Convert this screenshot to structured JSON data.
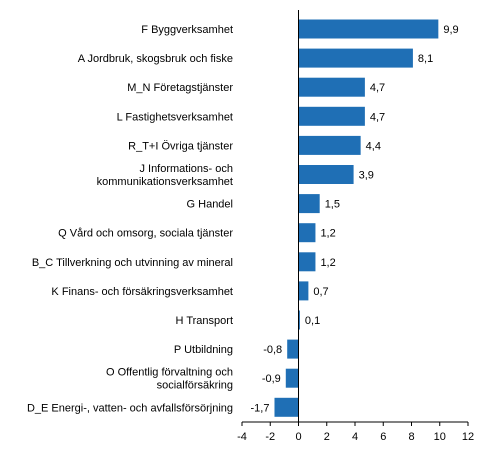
{
  "chart_data": {
    "type": "bar",
    "orientation": "horizontal",
    "categories": [
      [
        "F Byggverksamhet"
      ],
      [
        "A Jordbruk, skogsbruk och fiske"
      ],
      [
        "M_N Företagstjänster"
      ],
      [
        "L Fastighetsverksamhet"
      ],
      [
        "R_T+I Övriga tjänster"
      ],
      [
        "J Informations- och",
        "kommunikationsverksamhet"
      ],
      [
        "G Handel"
      ],
      [
        "Q Vård och omsorg, sociala tjänster"
      ],
      [
        "B_C Tillverkning och utvinning av mineral"
      ],
      [
        "K Finans- och försäkringsverksamhet"
      ],
      [
        "H Transport"
      ],
      [
        "P Utbildning"
      ],
      [
        "O Offentlig förvaltning och",
        "socialförsäkring"
      ],
      [
        "D_E Energi-, vatten- och avfallsförsörjning"
      ]
    ],
    "values": [
      9.9,
      8.1,
      4.7,
      4.7,
      4.4,
      3.9,
      1.5,
      1.2,
      1.2,
      0.7,
      0.1,
      -0.8,
      -0.9,
      -1.7
    ],
    "value_labels": [
      "9,9",
      "8,1",
      "4,7",
      "4,7",
      "4,4",
      "3,9",
      "1,5",
      "1,2",
      "1,2",
      "0,7",
      "0,1",
      "-0,8",
      "-0,9",
      "-1,7"
    ],
    "xlim": [
      -4,
      12
    ],
    "xticks": [
      -4,
      -2,
      0,
      2,
      4,
      6,
      8,
      10,
      12
    ],
    "xtick_labels": [
      "-4",
      "-2",
      "0",
      "2",
      "4",
      "6",
      "8",
      "10",
      "12"
    ],
    "bar_color": "#1f6fb5",
    "grid": false,
    "legend": "none"
  }
}
